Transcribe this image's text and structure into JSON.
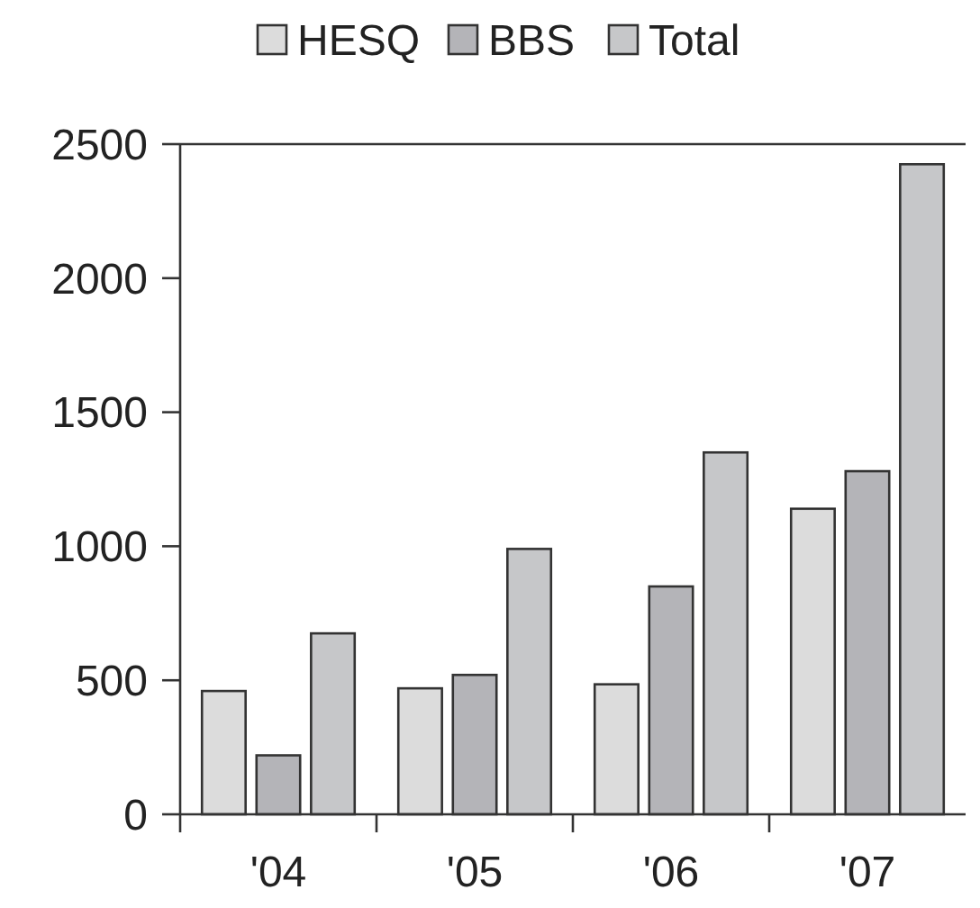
{
  "chart_data": {
    "type": "bar",
    "categories": [
      "'04",
      "'05",
      "'06",
      "'07"
    ],
    "series": [
      {
        "name": "HESQ",
        "color": "#dcdcdc",
        "values": [
          460,
          470,
          485,
          1140
        ]
      },
      {
        "name": "BBS",
        "color": "#b4b4b8",
        "values": [
          220,
          520,
          850,
          1280
        ]
      },
      {
        "name": "Total",
        "color": "#c6c7c9",
        "values": [
          675,
          990,
          1350,
          2425
        ]
      }
    ],
    "ylim": [
      0,
      2500
    ],
    "yticks": [
      0,
      500,
      1000,
      1500,
      2000,
      2500
    ],
    "grid": false,
    "legend": "top"
  }
}
